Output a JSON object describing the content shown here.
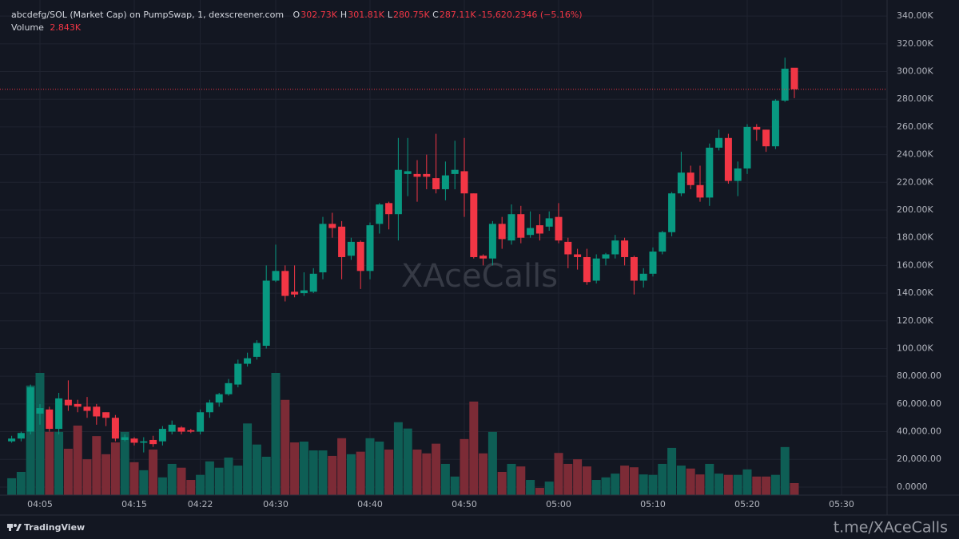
{
  "chart_data": {
    "type": "candlestick",
    "title": "abcdefg/SOL (Market Cap) on PumpSwap, 1, dexscreener.com",
    "legend_values": [
      {
        "label": "O",
        "value": "302.73K"
      },
      {
        "label": "H",
        "value": "301.81K"
      },
      {
        "label": "L",
        "value": "280.75K"
      },
      {
        "label": "C",
        "value": "287.11K"
      }
    ],
    "change": "-15,620.2346 (−5.16%)",
    "volume_label": "Volume",
    "volume_value": "2.843K",
    "watermark": "XAceCalls",
    "footer_brand": "TradingView",
    "footer_link": "t.me/XAceCalls",
    "categories": [
      null,
      null,
      null,
      "04:05",
      null,
      null,
      null,
      null,
      null,
      null,
      null,
      null,
      null,
      "04:15",
      null,
      null,
      null,
      null,
      null,
      null,
      "04:22",
      null,
      null,
      null,
      null,
      null,
      null,
      null,
      "04:30",
      null,
      null,
      null,
      null,
      null,
      null,
      null,
      null,
      null,
      "04:40",
      null,
      null,
      null,
      null,
      null,
      null,
      null,
      null,
      null,
      "04:50",
      null,
      null,
      null,
      null,
      null,
      null,
      null,
      null,
      null,
      "05:00",
      null,
      null,
      null,
      null,
      null,
      null,
      null,
      null,
      null,
      "05:10",
      null,
      null,
      null,
      null,
      null,
      null,
      null,
      null,
      null,
      "05:20",
      null,
      null,
      null,
      null,
      null,
      null,
      null,
      null,
      null,
      "05:30"
    ],
    "open": [
      33,
      35,
      40,
      53,
      56,
      42,
      63,
      60,
      58,
      58,
      54,
      50,
      34,
      35,
      32,
      34,
      33,
      40,
      43,
      41,
      40,
      54,
      61,
      67,
      74,
      89,
      94,
      102,
      149,
      156,
      141,
      140,
      141,
      155,
      190,
      188,
      167,
      177,
      156,
      190,
      205,
      197,
      226,
      226,
      226,
      223,
      215,
      226,
      228,
      212,
      167,
      165,
      190,
      178,
      197,
      182,
      189,
      188,
      195,
      177,
      168,
      166,
      149,
      165,
      168,
      178,
      166,
      149,
      154,
      170,
      184,
      212,
      227,
      218,
      209,
      245,
      252,
      221,
      230,
      260,
      258,
      246,
      279,
      302.73,
      null,
      null,
      null,
      null,
      null
    ],
    "high": [
      37,
      40,
      74,
      60,
      58,
      68,
      77,
      63,
      65,
      60,
      54,
      52,
      38,
      36,
      36,
      37,
      44,
      48,
      44,
      42,
      56,
      63,
      68,
      78,
      92,
      97,
      106,
      160,
      175,
      160,
      160,
      155,
      158,
      195,
      198,
      192,
      180,
      178,
      191,
      205,
      206,
      252,
      252,
      236,
      240,
      255,
      235,
      250,
      252,
      212,
      168,
      192,
      195,
      204,
      203,
      199,
      197,
      199,
      205,
      180,
      172,
      172,
      168,
      169,
      182,
      180,
      167,
      158,
      173,
      185,
      213,
      242,
      232,
      232,
      248,
      258,
      255,
      235,
      262,
      262,
      258,
      280,
      310,
      301.81,
      null,
      null,
      null,
      null,
      null
    ],
    "low": [
      32,
      33,
      38,
      45,
      40,
      38,
      55,
      54,
      50,
      45,
      44,
      33,
      33,
      30,
      25,
      29,
      30,
      38,
      38,
      39,
      38,
      50,
      58,
      66,
      72,
      87,
      92,
      100,
      148,
      134,
      137,
      138,
      140,
      150,
      180,
      150,
      164,
      143,
      150,
      183,
      186,
      178,
      210,
      206,
      215,
      212,
      207,
      215,
      195,
      165,
      160,
      160,
      172,
      175,
      176,
      180,
      178,
      185,
      176,
      158,
      157,
      146,
      147,
      160,
      165,
      160,
      139,
      144,
      152,
      168,
      181,
      210,
      215,
      206,
      203,
      243,
      219,
      210,
      226,
      250,
      242,
      244,
      278,
      280.75,
      null,
      null,
      null,
      null,
      null
    ],
    "close": [
      35,
      39,
      72,
      57,
      42,
      64,
      59,
      58,
      55,
      51,
      50,
      35,
      36,
      32,
      33,
      31,
      42,
      45,
      40,
      40,
      54,
      61,
      67,
      75,
      89,
      93,
      104,
      149,
      156,
      138,
      139,
      142,
      154,
      190,
      187,
      166,
      177,
      156,
      189,
      204,
      197,
      229,
      228,
      224,
      224,
      215,
      225,
      229,
      212,
      166,
      165,
      190,
      179,
      197,
      180,
      187,
      183,
      194,
      178,
      168,
      166,
      148,
      165,
      168,
      178,
      166,
      149,
      154,
      170,
      184,
      212,
      227,
      218,
      209,
      245,
      252,
      221,
      230,
      260,
      258,
      246,
      279,
      302,
      287.11,
      null,
      null,
      null,
      null,
      null
    ],
    "volume": [
      4,
      5.5,
      26,
      29,
      15,
      15,
      11,
      16.5,
      8.5,
      14,
      9.7,
      12.5,
      15,
      7.8,
      5.9,
      10.8,
      4.2,
      7.4,
      6.5,
      3.6,
      4.8,
      8,
      6.5,
      8.9,
      7,
      17,
      12,
      9.1,
      29,
      22.6,
      12.5,
      12.7,
      10.6,
      10.6,
      9.3,
      13.5,
      9.7,
      10.3,
      13.5,
      12.7,
      10.8,
      17.3,
      15.8,
      10.8,
      9.9,
      12.2,
      7.4,
      4.4,
      13.3,
      22.2,
      9.9,
      15,
      5.5,
      7.4,
      6.8,
      3.6,
      1.7,
      3.2,
      10,
      7.4,
      8.5,
      6.8,
      3.6,
      4.2,
      5.1,
      7,
      6.6,
      4.9,
      4.8,
      7.4,
      11.2,
      7,
      6.3,
      4.9,
      7.4,
      5.1,
      4.8,
      4.8,
      6.1,
      4.4,
      4.4,
      4.8,
      11.4,
      2.843,
      null,
      null,
      null,
      null,
      null
    ],
    "ylim": [
      -5.8,
      347
    ],
    "yticks": [
      {
        "value": 340,
        "label": "340.00K"
      },
      {
        "value": 320,
        "label": "320.00K"
      },
      {
        "value": 300,
        "label": "300.00K"
      },
      {
        "value": 280,
        "label": "280.00K"
      },
      {
        "value": 260,
        "label": "260.00K"
      },
      {
        "value": 240,
        "label": "240.00K"
      },
      {
        "value": 220,
        "label": "220.00K"
      },
      {
        "value": 200,
        "label": "200.00K"
      },
      {
        "value": 180,
        "label": "180.00K"
      },
      {
        "value": 160,
        "label": "160.00K"
      },
      {
        "value": 140,
        "label": "140.00K"
      },
      {
        "value": 120,
        "label": "120.00K"
      },
      {
        "value": 100,
        "label": "100.00K"
      },
      {
        "value": 80,
        "label": "80,000.00"
      },
      {
        "value": 60,
        "label": "60,000.00"
      },
      {
        "value": 40,
        "label": "40,000.00"
      },
      {
        "value": 20,
        "label": "20,000.00"
      },
      {
        "value": 0,
        "label": "0.0000"
      }
    ],
    "grid": true,
    "up_color": "#089981",
    "down_color": "#f23645",
    "volume_up_color": "#0e5e55",
    "volume_down_color": "#7c2b36",
    "price_line_color": "#f23645"
  }
}
